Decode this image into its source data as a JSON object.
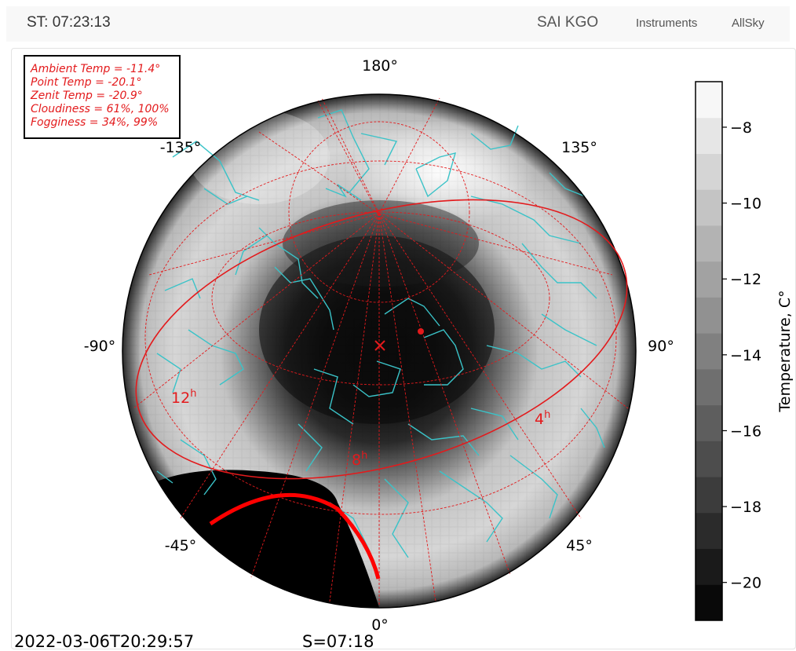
{
  "navbar": {
    "sidereal_time": "ST: 07:23:13",
    "brand": "SAI KGO",
    "links": [
      "Instruments",
      "AllSky"
    ]
  },
  "info": {
    "ambient_temp": "Ambient Temp = -11.4°",
    "point_temp": "Point Temp = -20.1°",
    "zenit_temp": "Zenit Temp = -20.9°",
    "cloudiness": "Cloudiness = 61%, 100%",
    "fogginess": "Fogginess = 34%, 99%"
  },
  "plot": {
    "azimuth_labels": {
      "top": "180°",
      "upper_left": "-135°",
      "upper_right": "135°",
      "left": "-90°",
      "right": "90°",
      "lower_left": "-45°",
      "lower_right": "45°",
      "bottom": "0°"
    },
    "hour_labels": [
      {
        "base": "12",
        "sup": "h"
      },
      {
        "base": "8",
        "sup": "h"
      },
      {
        "base": "4",
        "sup": "h"
      }
    ],
    "colors": {
      "grid": "#e31a1c",
      "constellation": "#3ac3c8",
      "marker": "#e31a1c",
      "colormap": "gray"
    }
  },
  "colorbar": {
    "label": "Temperature, C°",
    "ticks": [
      -8,
      -10,
      -12,
      -14,
      -16,
      -18,
      -20
    ],
    "range": [
      -21,
      -6.8
    ]
  },
  "footer": {
    "timestamp": "2022-03-06T20:29:57",
    "sidereal": "S=07:18"
  }
}
